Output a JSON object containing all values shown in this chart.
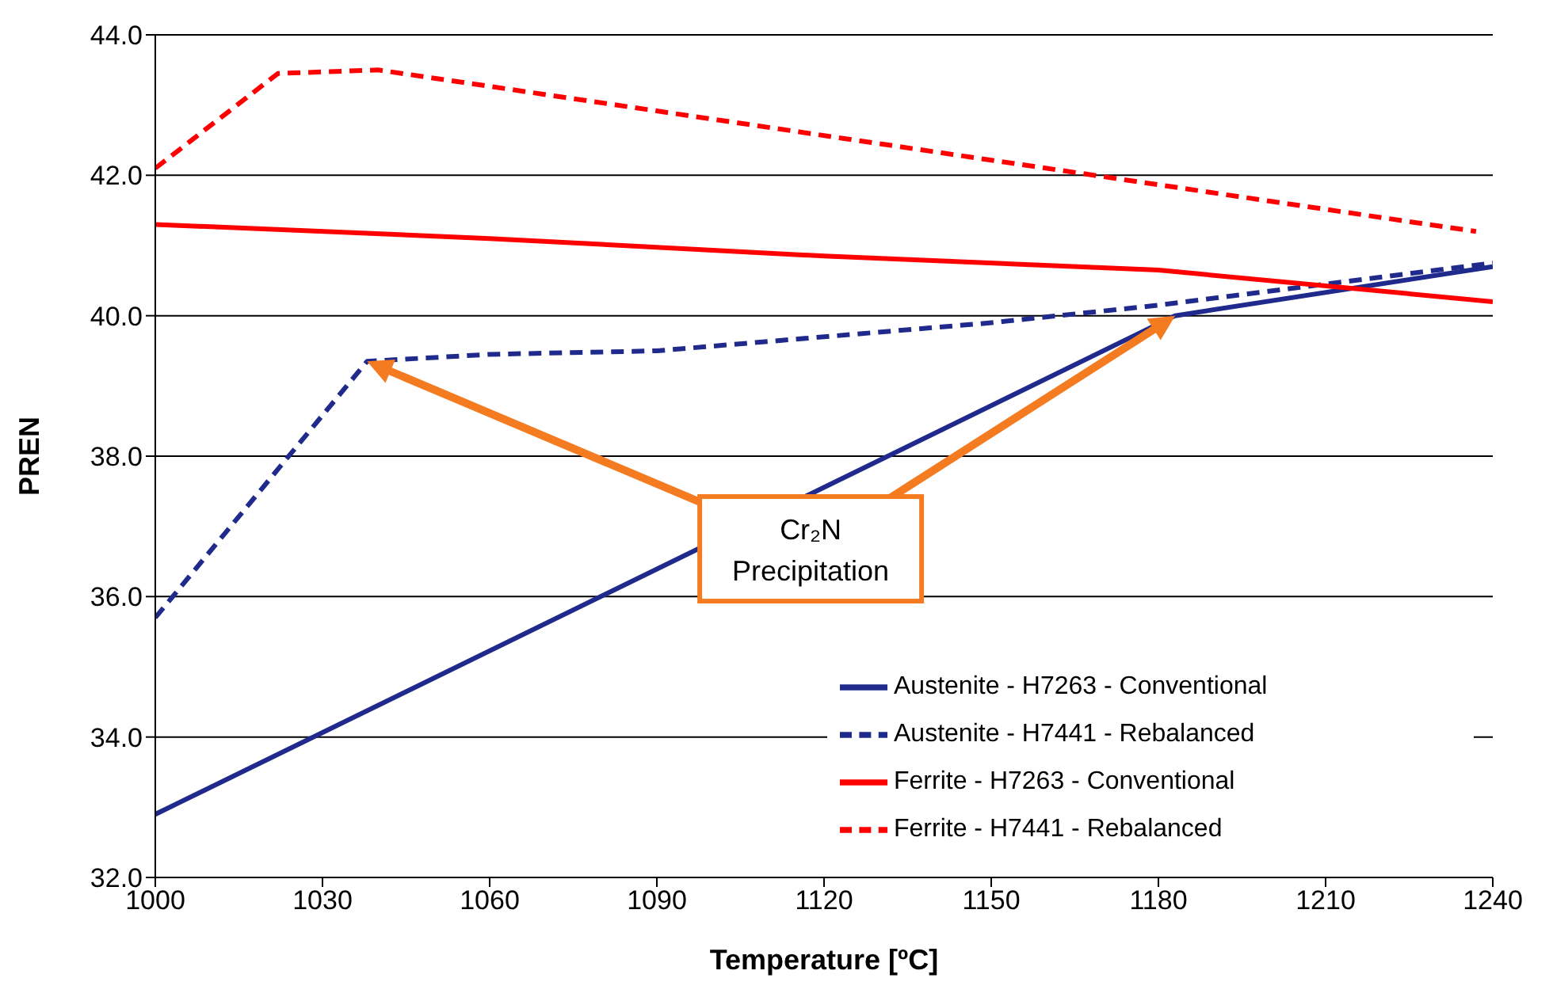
{
  "chart_data": {
    "type": "line",
    "xlabel": "Temperature [ºC]",
    "ylabel": "PREN",
    "xlim": [
      1000,
      1240
    ],
    "xticks": [
      1000,
      1030,
      1060,
      1090,
      1120,
      1150,
      1180,
      1210,
      1240
    ],
    "ylim": [
      32,
      44
    ],
    "yticks": [
      {
        "value": 32,
        "label": "32.0"
      },
      {
        "value": 34,
        "label": "34.0"
      },
      {
        "value": 36,
        "label": "36.0"
      },
      {
        "value": 38,
        "label": "38.0"
      },
      {
        "value": 40,
        "label": "40.0"
      },
      {
        "value": 42,
        "label": "42.0"
      },
      {
        "value": 44,
        "label": "44.0"
      }
    ],
    "grid": "y",
    "legend": "bottom right",
    "marker": "none",
    "series": [
      {
        "name": "Austenite - H7263 - Conventional",
        "color": "#1f2a8c",
        "line_style": "solid",
        "x": [
          1000,
          1183,
          1240
        ],
        "values": [
          32.9,
          40.0,
          40.7
        ]
      },
      {
        "name": "Austenite - H7441 - Rebalanced",
        "color": "#1f2a8c",
        "line_style": "dashed",
        "x": [
          1000,
          1038,
          1060,
          1090,
          1120,
          1150,
          1180,
          1240
        ],
        "values": [
          35.7,
          39.35,
          39.45,
          39.5,
          39.7,
          39.9,
          40.15,
          40.75
        ]
      },
      {
        "name": "Ferrite - H7263 - Conventional",
        "color": "#ff0000",
        "line_style": "solid",
        "x": [
          1000,
          1060,
          1120,
          1180,
          1240
        ],
        "values": [
          41.3,
          41.1,
          40.85,
          40.65,
          40.2
        ]
      },
      {
        "name": "Ferrite - H7441 - Rebalanced",
        "color": "#ff0000",
        "line_style": "dashed",
        "x": [
          1000,
          1022,
          1040,
          1237
        ],
        "values": [
          42.1,
          43.45,
          43.5,
          41.2
        ]
      }
    ],
    "annotations": [
      "Cr₂N Precipitation"
    ]
  }
}
